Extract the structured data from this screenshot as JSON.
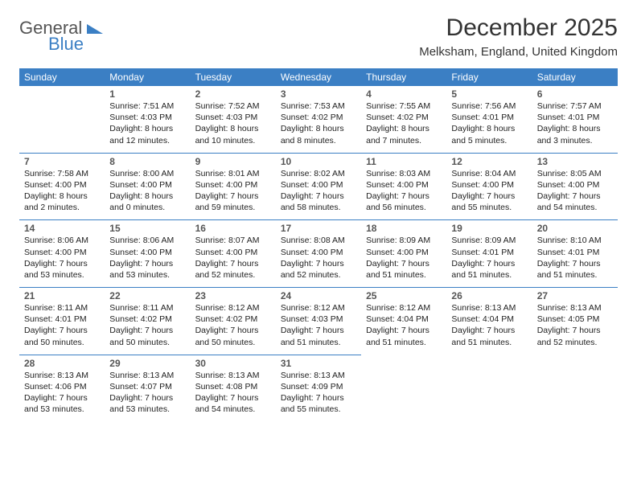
{
  "logo": {
    "line1": "General",
    "line2": "Blue"
  },
  "title": "December 2025",
  "location": "Melksham, England, United Kingdom",
  "colors": {
    "header_bg": "#3b7fc4",
    "header_text": "#ffffff",
    "border": "#3b7fc4",
    "text": "#222222",
    "title_text": "#333333"
  },
  "fonts": {
    "title_size": 30,
    "location_size": 15,
    "header_size": 12,
    "daynum_size": 12,
    "body_size": 10.5
  },
  "days_of_week": [
    "Sunday",
    "Monday",
    "Tuesday",
    "Wednesday",
    "Thursday",
    "Friday",
    "Saturday"
  ],
  "weeks": [
    [
      null,
      {
        "n": "1",
        "sr": "Sunrise: 7:51 AM",
        "ss": "Sunset: 4:03 PM",
        "d1": "Daylight: 8 hours",
        "d2": "and 12 minutes."
      },
      {
        "n": "2",
        "sr": "Sunrise: 7:52 AM",
        "ss": "Sunset: 4:03 PM",
        "d1": "Daylight: 8 hours",
        "d2": "and 10 minutes."
      },
      {
        "n": "3",
        "sr": "Sunrise: 7:53 AM",
        "ss": "Sunset: 4:02 PM",
        "d1": "Daylight: 8 hours",
        "d2": "and 8 minutes."
      },
      {
        "n": "4",
        "sr": "Sunrise: 7:55 AM",
        "ss": "Sunset: 4:02 PM",
        "d1": "Daylight: 8 hours",
        "d2": "and 7 minutes."
      },
      {
        "n": "5",
        "sr": "Sunrise: 7:56 AM",
        "ss": "Sunset: 4:01 PM",
        "d1": "Daylight: 8 hours",
        "d2": "and 5 minutes."
      },
      {
        "n": "6",
        "sr": "Sunrise: 7:57 AM",
        "ss": "Sunset: 4:01 PM",
        "d1": "Daylight: 8 hours",
        "d2": "and 3 minutes."
      }
    ],
    [
      {
        "n": "7",
        "sr": "Sunrise: 7:58 AM",
        "ss": "Sunset: 4:00 PM",
        "d1": "Daylight: 8 hours",
        "d2": "and 2 minutes."
      },
      {
        "n": "8",
        "sr": "Sunrise: 8:00 AM",
        "ss": "Sunset: 4:00 PM",
        "d1": "Daylight: 8 hours",
        "d2": "and 0 minutes."
      },
      {
        "n": "9",
        "sr": "Sunrise: 8:01 AM",
        "ss": "Sunset: 4:00 PM",
        "d1": "Daylight: 7 hours",
        "d2": "and 59 minutes."
      },
      {
        "n": "10",
        "sr": "Sunrise: 8:02 AM",
        "ss": "Sunset: 4:00 PM",
        "d1": "Daylight: 7 hours",
        "d2": "and 58 minutes."
      },
      {
        "n": "11",
        "sr": "Sunrise: 8:03 AM",
        "ss": "Sunset: 4:00 PM",
        "d1": "Daylight: 7 hours",
        "d2": "and 56 minutes."
      },
      {
        "n": "12",
        "sr": "Sunrise: 8:04 AM",
        "ss": "Sunset: 4:00 PM",
        "d1": "Daylight: 7 hours",
        "d2": "and 55 minutes."
      },
      {
        "n": "13",
        "sr": "Sunrise: 8:05 AM",
        "ss": "Sunset: 4:00 PM",
        "d1": "Daylight: 7 hours",
        "d2": "and 54 minutes."
      }
    ],
    [
      {
        "n": "14",
        "sr": "Sunrise: 8:06 AM",
        "ss": "Sunset: 4:00 PM",
        "d1": "Daylight: 7 hours",
        "d2": "and 53 minutes."
      },
      {
        "n": "15",
        "sr": "Sunrise: 8:06 AM",
        "ss": "Sunset: 4:00 PM",
        "d1": "Daylight: 7 hours",
        "d2": "and 53 minutes."
      },
      {
        "n": "16",
        "sr": "Sunrise: 8:07 AM",
        "ss": "Sunset: 4:00 PM",
        "d1": "Daylight: 7 hours",
        "d2": "and 52 minutes."
      },
      {
        "n": "17",
        "sr": "Sunrise: 8:08 AM",
        "ss": "Sunset: 4:00 PM",
        "d1": "Daylight: 7 hours",
        "d2": "and 52 minutes."
      },
      {
        "n": "18",
        "sr": "Sunrise: 8:09 AM",
        "ss": "Sunset: 4:00 PM",
        "d1": "Daylight: 7 hours",
        "d2": "and 51 minutes."
      },
      {
        "n": "19",
        "sr": "Sunrise: 8:09 AM",
        "ss": "Sunset: 4:01 PM",
        "d1": "Daylight: 7 hours",
        "d2": "and 51 minutes."
      },
      {
        "n": "20",
        "sr": "Sunrise: 8:10 AM",
        "ss": "Sunset: 4:01 PM",
        "d1": "Daylight: 7 hours",
        "d2": "and 51 minutes."
      }
    ],
    [
      {
        "n": "21",
        "sr": "Sunrise: 8:11 AM",
        "ss": "Sunset: 4:01 PM",
        "d1": "Daylight: 7 hours",
        "d2": "and 50 minutes."
      },
      {
        "n": "22",
        "sr": "Sunrise: 8:11 AM",
        "ss": "Sunset: 4:02 PM",
        "d1": "Daylight: 7 hours",
        "d2": "and 50 minutes."
      },
      {
        "n": "23",
        "sr": "Sunrise: 8:12 AM",
        "ss": "Sunset: 4:02 PM",
        "d1": "Daylight: 7 hours",
        "d2": "and 50 minutes."
      },
      {
        "n": "24",
        "sr": "Sunrise: 8:12 AM",
        "ss": "Sunset: 4:03 PM",
        "d1": "Daylight: 7 hours",
        "d2": "and 51 minutes."
      },
      {
        "n": "25",
        "sr": "Sunrise: 8:12 AM",
        "ss": "Sunset: 4:04 PM",
        "d1": "Daylight: 7 hours",
        "d2": "and 51 minutes."
      },
      {
        "n": "26",
        "sr": "Sunrise: 8:13 AM",
        "ss": "Sunset: 4:04 PM",
        "d1": "Daylight: 7 hours",
        "d2": "and 51 minutes."
      },
      {
        "n": "27",
        "sr": "Sunrise: 8:13 AM",
        "ss": "Sunset: 4:05 PM",
        "d1": "Daylight: 7 hours",
        "d2": "and 52 minutes."
      }
    ],
    [
      {
        "n": "28",
        "sr": "Sunrise: 8:13 AM",
        "ss": "Sunset: 4:06 PM",
        "d1": "Daylight: 7 hours",
        "d2": "and 53 minutes."
      },
      {
        "n": "29",
        "sr": "Sunrise: 8:13 AM",
        "ss": "Sunset: 4:07 PM",
        "d1": "Daylight: 7 hours",
        "d2": "and 53 minutes."
      },
      {
        "n": "30",
        "sr": "Sunrise: 8:13 AM",
        "ss": "Sunset: 4:08 PM",
        "d1": "Daylight: 7 hours",
        "d2": "and 54 minutes."
      },
      {
        "n": "31",
        "sr": "Sunrise: 8:13 AM",
        "ss": "Sunset: 4:09 PM",
        "d1": "Daylight: 7 hours",
        "d2": "and 55 minutes."
      },
      null,
      null,
      null
    ]
  ]
}
